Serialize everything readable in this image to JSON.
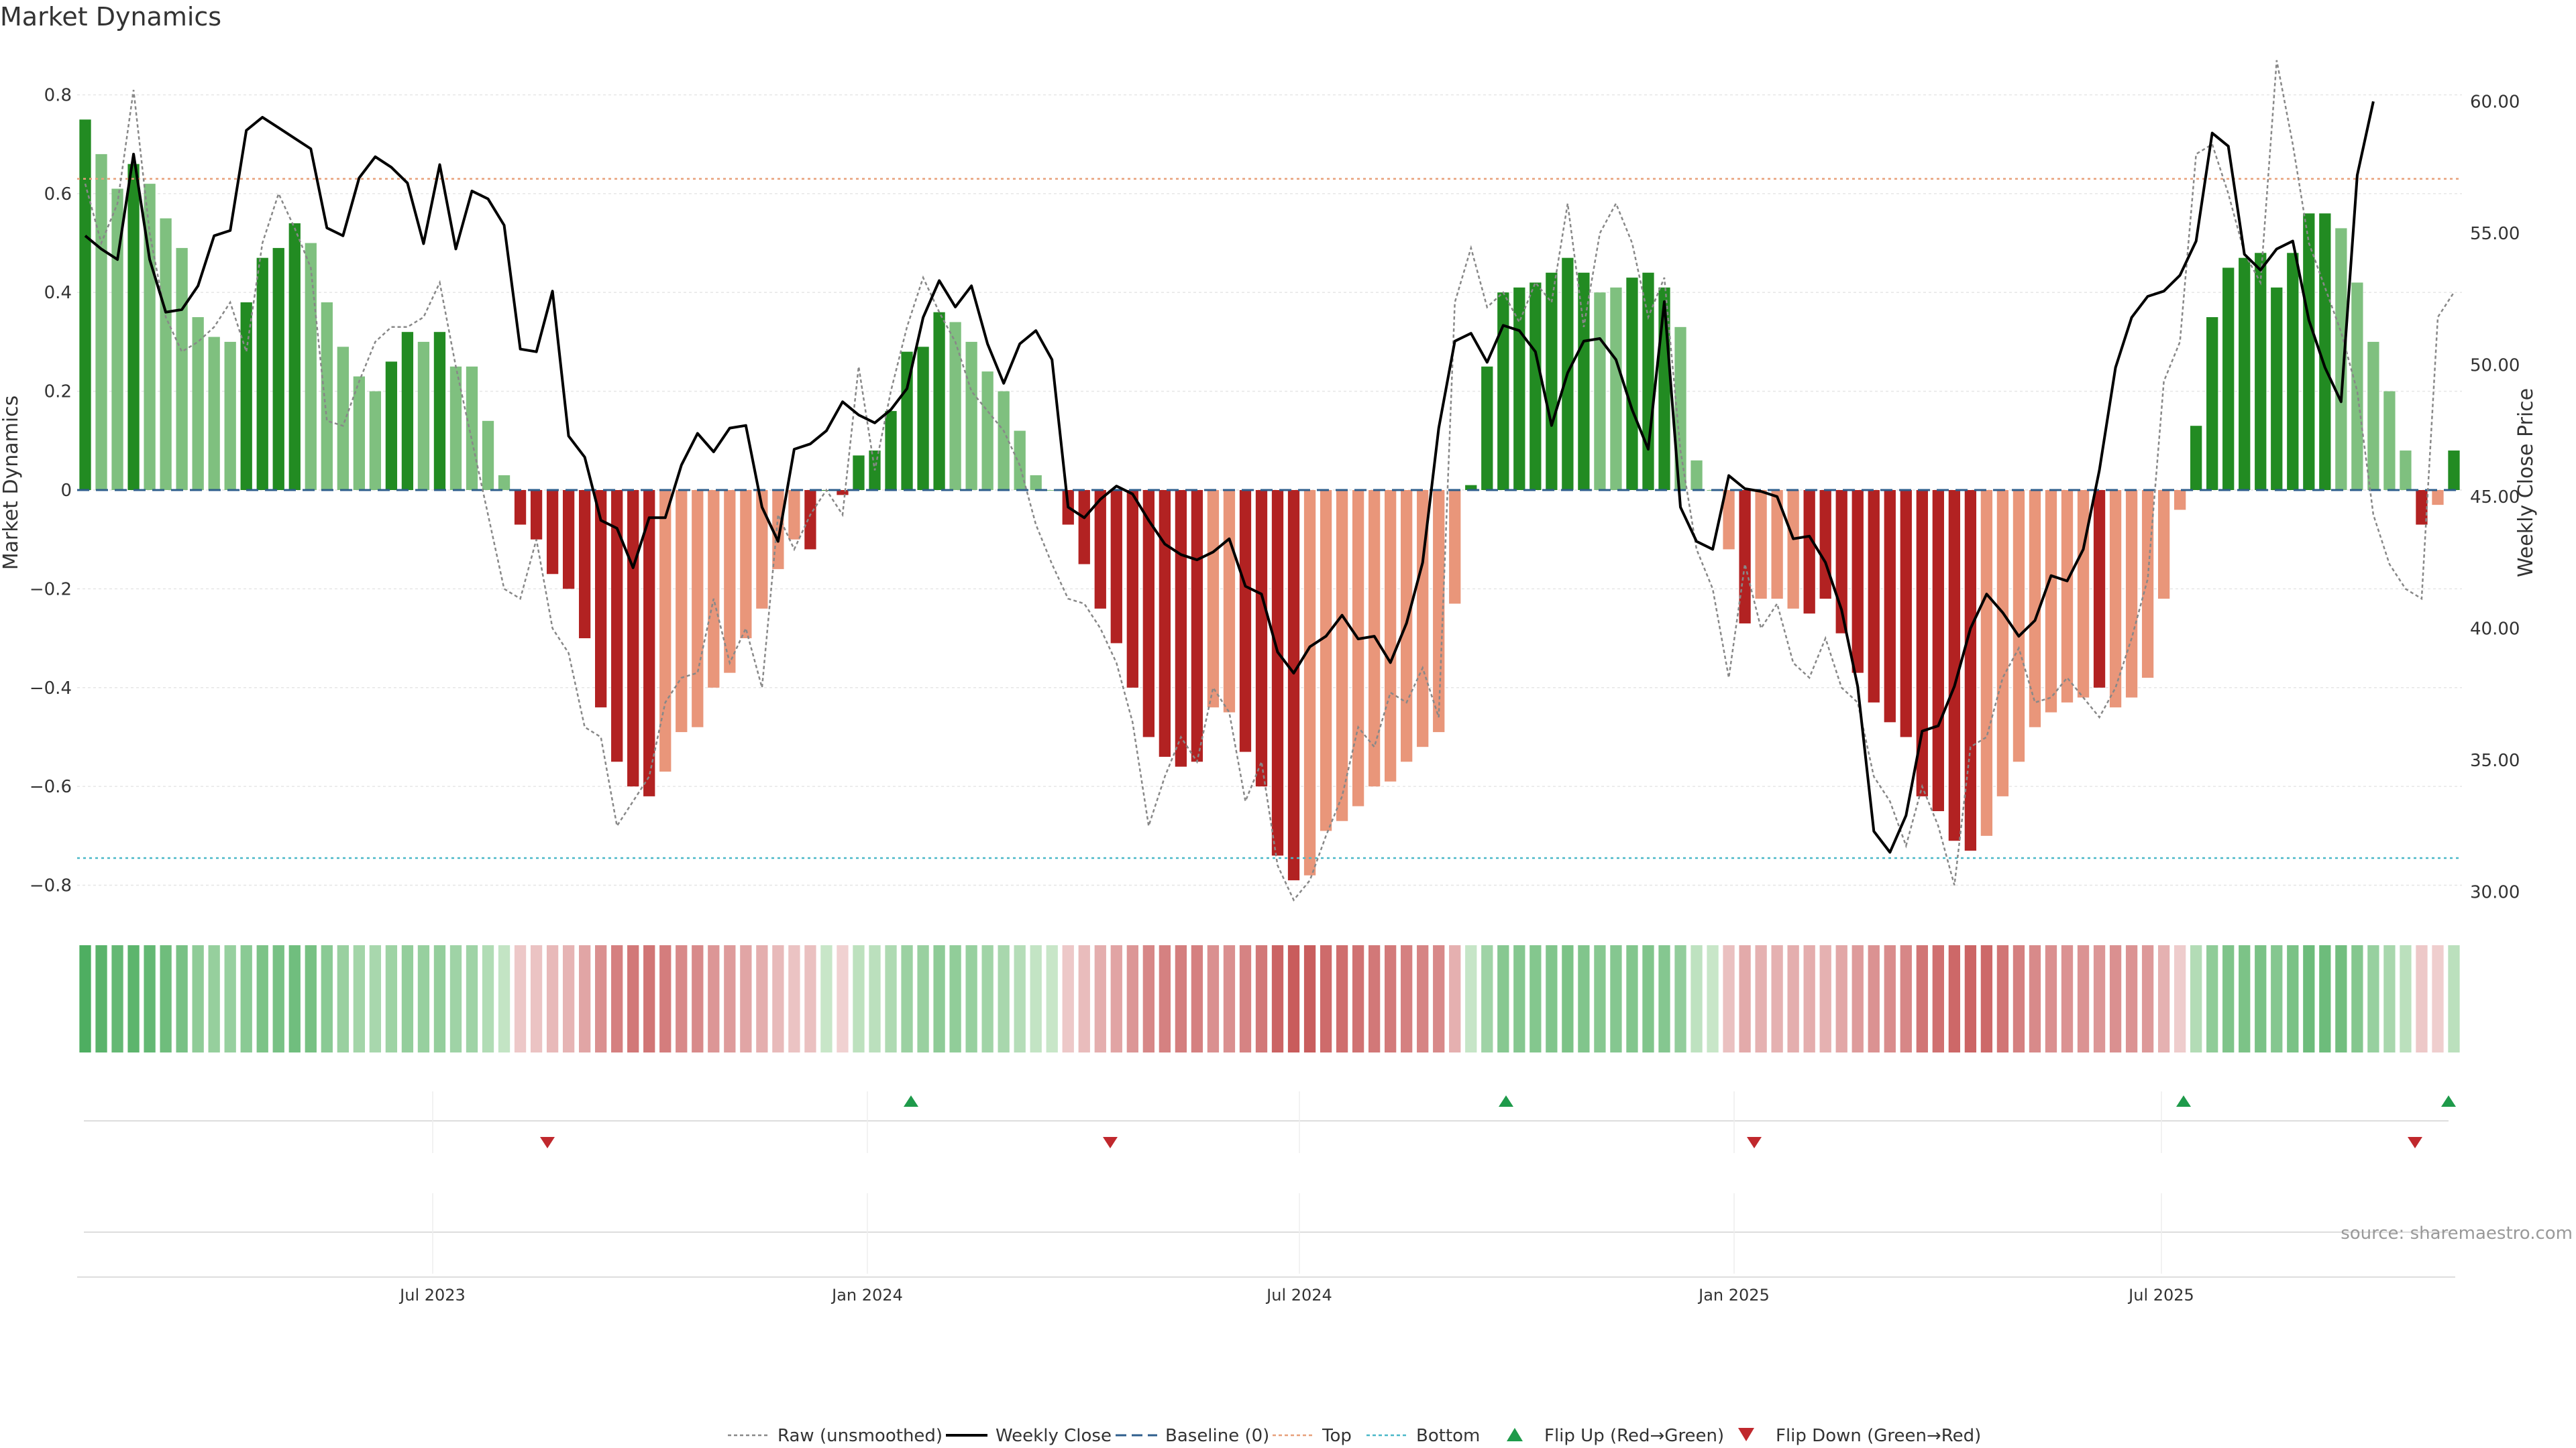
{
  "title": "Market Dynamics",
  "source": "source: sharemaestro.com",
  "legend": [
    {
      "label": "Raw (unsmoothed)",
      "kind": "dotted-line",
      "color": "#888888"
    },
    {
      "label": "Weekly Close",
      "kind": "line",
      "color": "#000000"
    },
    {
      "label": "Baseline (0)",
      "kind": "dashed-line",
      "color": "#2e5e8c"
    },
    {
      "label": "Top",
      "kind": "dotted-line",
      "color": "#e8a07a"
    },
    {
      "label": "Bottom",
      "kind": "dotted-line",
      "color": "#4ab8c8"
    },
    {
      "label": "Flip Up (Red→Green)",
      "kind": "up-triangle",
      "color": "#1e9a4a"
    },
    {
      "label": "Flip Down (Green→Red)",
      "kind": "down-triangle",
      "color": "#c0282d"
    }
  ],
  "colors": {
    "green_strong": "#228b22",
    "green_light": "#7fc07f",
    "red_strong": "#b22222",
    "red_light": "#e9967a",
    "raw": "#888888",
    "close": "#000000",
    "top": "#e8a07a",
    "bottom": "#4ab8c8",
    "baseline": "#2e5e8c",
    "flip_up": "#1e9a4a",
    "flip_down": "#c0282d"
  },
  "chart_data": {
    "type": "bar",
    "ylabel": "Market Dynamics",
    "y2label": "Weekly Close Price",
    "ylim": [
      -0.84,
      0.84
    ],
    "y2lim": [
      29.5,
      61.0
    ],
    "yticks": [
      "0.8",
      "0.6",
      "0.4",
      "0.2",
      "0",
      "−0.2",
      "−0.4",
      "−0.6",
      "−0.8"
    ],
    "y2ticks": [
      "60.00",
      "55.00",
      "50.00",
      "45.00",
      "40.00",
      "35.00",
      "30.00"
    ],
    "xticks": [
      "Jul 2023",
      "Jan 2024",
      "Jul 2024",
      "Jan 2025",
      "Jul 2025"
    ],
    "top_level": 0.63,
    "bottom_level": -0.745,
    "baseline": 0,
    "momentum": [
      0.75,
      0.68,
      0.61,
      0.66,
      0.62,
      0.55,
      0.49,
      0.35,
      0.31,
      0.3,
      0.38,
      0.47,
      0.49,
      0.54,
      0.5,
      0.38,
      0.29,
      0.23,
      0.2,
      0.26,
      0.32,
      0.3,
      0.32,
      0.25,
      0.25,
      0.14,
      0.03,
      -0.07,
      -0.1,
      -0.17,
      -0.2,
      -0.3,
      -0.44,
      -0.55,
      -0.6,
      -0.62,
      -0.57,
      -0.49,
      -0.48,
      -0.4,
      -0.37,
      -0.3,
      -0.24,
      -0.16,
      -0.1,
      -0.12,
      0,
      -0.01,
      0.07,
      0.08,
      0.16,
      0.28,
      0.29,
      0.36,
      0.34,
      0.3,
      0.24,
      0.2,
      0.12,
      0.03,
      0,
      -0.07,
      -0.15,
      -0.24,
      -0.31,
      -0.4,
      -0.5,
      -0.54,
      -0.56,
      -0.55,
      -0.44,
      -0.45,
      -0.53,
      -0.6,
      -0.74,
      -0.79,
      -0.78,
      -0.69,
      -0.67,
      -0.64,
      -0.6,
      -0.59,
      -0.55,
      -0.52,
      -0.49,
      -0.23,
      0.01,
      0.25,
      0.4,
      0.41,
      0.42,
      0.44,
      0.47,
      0.44,
      0.4,
      0.41,
      0.43,
      0.44,
      0.41,
      0.33,
      0.06,
      0,
      -0.12,
      -0.27,
      -0.22,
      -0.22,
      -0.24,
      -0.25,
      -0.22,
      -0.29,
      -0.37,
      -0.43,
      -0.47,
      -0.5,
      -0.62,
      -0.65,
      -0.71,
      -0.73,
      -0.7,
      -0.62,
      -0.55,
      -0.48,
      -0.45,
      -0.43,
      -0.42,
      -0.4,
      -0.44,
      -0.42,
      -0.38,
      -0.22,
      -0.04,
      0.13,
      0.35,
      0.45,
      0.47,
      0.48,
      0.41,
      0.48,
      0.56,
      0.56,
      0.53,
      0.42,
      0.3,
      0.2,
      0.08,
      -0.07,
      -0.03,
      0.08
    ],
    "momentum_shade": [
      "strong",
      "light",
      "light",
      "strong",
      "light",
      "light",
      "light",
      "light",
      "light",
      "light",
      "strong",
      "strong",
      "strong",
      "strong",
      "light",
      "light",
      "light",
      "light",
      "light",
      "strong",
      "strong",
      "light",
      "strong",
      "light",
      "light",
      "light",
      "light",
      "strong",
      "strong",
      "strong",
      "strong",
      "strong",
      "strong",
      "strong",
      "strong",
      "strong",
      "light",
      "light",
      "light",
      "light",
      "light",
      "light",
      "light",
      "light",
      "light",
      "strong",
      "strong",
      "strong",
      "strong",
      "strong",
      "strong",
      "strong",
      "strong",
      "strong",
      "light",
      "light",
      "light",
      "light",
      "light",
      "light",
      "light",
      "strong",
      "strong",
      "strong",
      "strong",
      "strong",
      "strong",
      "strong",
      "strong",
      "strong",
      "light",
      "light",
      "strong",
      "strong",
      "strong",
      "strong",
      "light",
      "light",
      "light",
      "light",
      "light",
      "light",
      "light",
      "light",
      "light",
      "light",
      "strong",
      "strong",
      "strong",
      "strong",
      "strong",
      "strong",
      "strong",
      "strong",
      "light",
      "light",
      "strong",
      "strong",
      "strong",
      "light",
      "light",
      "light",
      "light",
      "strong",
      "light",
      "light",
      "light",
      "strong",
      "strong",
      "strong",
      "strong",
      "strong",
      "strong",
      "strong",
      "strong",
      "strong",
      "strong",
      "strong",
      "light",
      "light",
      "light",
      "light",
      "light",
      "light",
      "light",
      "strong",
      "light",
      "light",
      "light",
      "light",
      "light",
      "strong",
      "strong",
      "strong",
      "strong",
      "strong",
      "strong",
      "strong",
      "strong",
      "strong",
      "light",
      "light",
      "light",
      "light",
      "light",
      "strong",
      "light",
      "strong"
    ],
    "raw": [
      0.62,
      0.5,
      0.58,
      0.81,
      0.52,
      0.35,
      0.28,
      0.3,
      0.33,
      0.38,
      0.28,
      0.5,
      0.6,
      0.53,
      0.45,
      0.14,
      0.13,
      0.22,
      0.3,
      0.33,
      0.33,
      0.35,
      0.42,
      0.25,
      0.1,
      -0.05,
      -0.2,
      -0.22,
      -0.1,
      -0.28,
      -0.33,
      -0.48,
      -0.5,
      -0.68,
      -0.63,
      -0.58,
      -0.43,
      -0.38,
      -0.37,
      -0.22,
      -0.35,
      -0.28,
      -0.4,
      -0.05,
      -0.12,
      -0.05,
      0,
      -0.05,
      0.25,
      0.04,
      0.2,
      0.33,
      0.43,
      0.36,
      0.3,
      0.2,
      0.16,
      0.12,
      0.05,
      -0.07,
      -0.15,
      -0.22,
      -0.23,
      -0.28,
      -0.35,
      -0.47,
      -0.68,
      -0.58,
      -0.5,
      -0.55,
      -0.4,
      -0.45,
      -0.63,
      -0.55,
      -0.76,
      -0.83,
      -0.79,
      -0.7,
      -0.62,
      -0.48,
      -0.52,
      -0.41,
      -0.43,
      -0.36,
      -0.46,
      0.38,
      0.49,
      0.37,
      0.4,
      0.34,
      0.42,
      0.38,
      0.58,
      0.33,
      0.52,
      0.58,
      0.5,
      0.35,
      0.43,
      0.08,
      -0.12,
      -0.2,
      -0.38,
      -0.15,
      -0.28,
      -0.23,
      -0.35,
      -0.38,
      -0.3,
      -0.4,
      -0.43,
      -0.58,
      -0.63,
      -0.72,
      -0.6,
      -0.68,
      -0.8,
      -0.52,
      -0.5,
      -0.38,
      -0.32,
      -0.43,
      -0.42,
      -0.38,
      -0.42,
      -0.46,
      -0.4,
      -0.3,
      -0.18,
      0.22,
      0.3,
      0.68,
      0.7,
      0.6,
      0.48,
      0.42,
      0.87,
      0.7,
      0.5,
      0.41,
      0.32,
      0.2,
      -0.05,
      -0.15,
      -0.2,
      -0.22,
      0.35,
      0.4
    ],
    "close": [
      54.9,
      54.4,
      54.0,
      58.0,
      54.0,
      52.0,
      52.1,
      53.0,
      54.9,
      55.1,
      58.9,
      59.4,
      59.0,
      58.6,
      58.2,
      55.2,
      54.9,
      57.1,
      57.9,
      57.5,
      56.9,
      54.6,
      57.6,
      54.4,
      56.6,
      56.3,
      55.3,
      50.6,
      50.5,
      52.8,
      47.3,
      46.5,
      44.1,
      43.8,
      42.3,
      44.2,
      44.2,
      46.2,
      47.4,
      46.7,
      47.6,
      47.7,
      44.6,
      43.3,
      46.8,
      47.0,
      47.5,
      48.6,
      48.1,
      47.8,
      48.3,
      49.1,
      51.8,
      53.2,
      52.2,
      53.0,
      50.8,
      49.3,
      50.8,
      51.3,
      50.2,
      44.6,
      44.2,
      44.9,
      45.4,
      45.1,
      44.1,
      43.2,
      42.8,
      42.6,
      42.9,
      43.4,
      41.6,
      41.3,
      39.1,
      38.3,
      39.3,
      39.7,
      40.5,
      39.6,
      39.7,
      38.7,
      40.2,
      42.5,
      47.6,
      50.9,
      51.2,
      50.1,
      51.5,
      51.3,
      50.5,
      47.7,
      49.7,
      50.9,
      51.0,
      50.2,
      48.3,
      46.8,
      52.4,
      44.6,
      43.3,
      43.0,
      45.8,
      45.3,
      45.2,
      45.0,
      43.4,
      43.5,
      42.5,
      40.7,
      37.8,
      32.3,
      31.5,
      32.9,
      36.1,
      36.3,
      37.8,
      40.0,
      41.3,
      40.6,
      39.7,
      40.3,
      42.0,
      41.8,
      43.0,
      46.0,
      49.9,
      51.8,
      52.6,
      52.8,
      53.4,
      54.7,
      58.8,
      58.3,
      54.2,
      53.6,
      54.4,
      54.7,
      51.7,
      49.9,
      48.6,
      57.2,
      60.0
    ]
  },
  "flips": {
    "up": [
      "Jan 2024 +5w",
      "Oct 2024",
      "Jul 2025",
      "last week"
    ],
    "down": [
      "Aug 2023",
      "Apr 2024",
      "Jan 2025",
      "Nov 2025"
    ]
  },
  "strength_band_label": ""
}
